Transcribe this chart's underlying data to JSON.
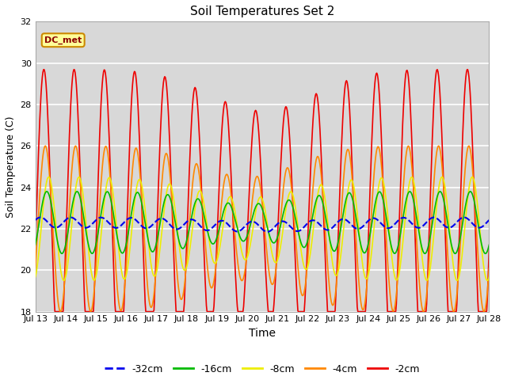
{
  "title": "Soil Temperatures Set 2",
  "xlabel": "Time",
  "ylabel": "Soil Temperature (C)",
  "ylim": [
    18,
    32
  ],
  "yticks": [
    18,
    20,
    22,
    24,
    26,
    28,
    30,
    32
  ],
  "x_tick_labels": [
    "Jul 13",
    "Jul 14",
    "Jul 15",
    "Jul 16",
    "Jul 17",
    "Jul 18",
    "Jul 19",
    "Jul 20",
    "Jul 21",
    "Jul 22",
    "Jul 23",
    "Jul 24",
    "Jul 25",
    "Jul 26",
    "Jul 27",
    "Jul 28"
  ],
  "series_colors": {
    "-32cm": "#0000ee",
    "-16cm": "#00bb00",
    "-8cm": "#eeee00",
    "-4cm": "#ff8800",
    "-2cm": "#ee0000"
  },
  "annotation_text": "DC_met",
  "annotation_bgcolor": "#ffff99",
  "annotation_edgecolor": "#cc8800",
  "fig_bg_color": "#ffffff",
  "plot_bg_color": "#d8d8d8",
  "n_points": 720,
  "days": 15
}
